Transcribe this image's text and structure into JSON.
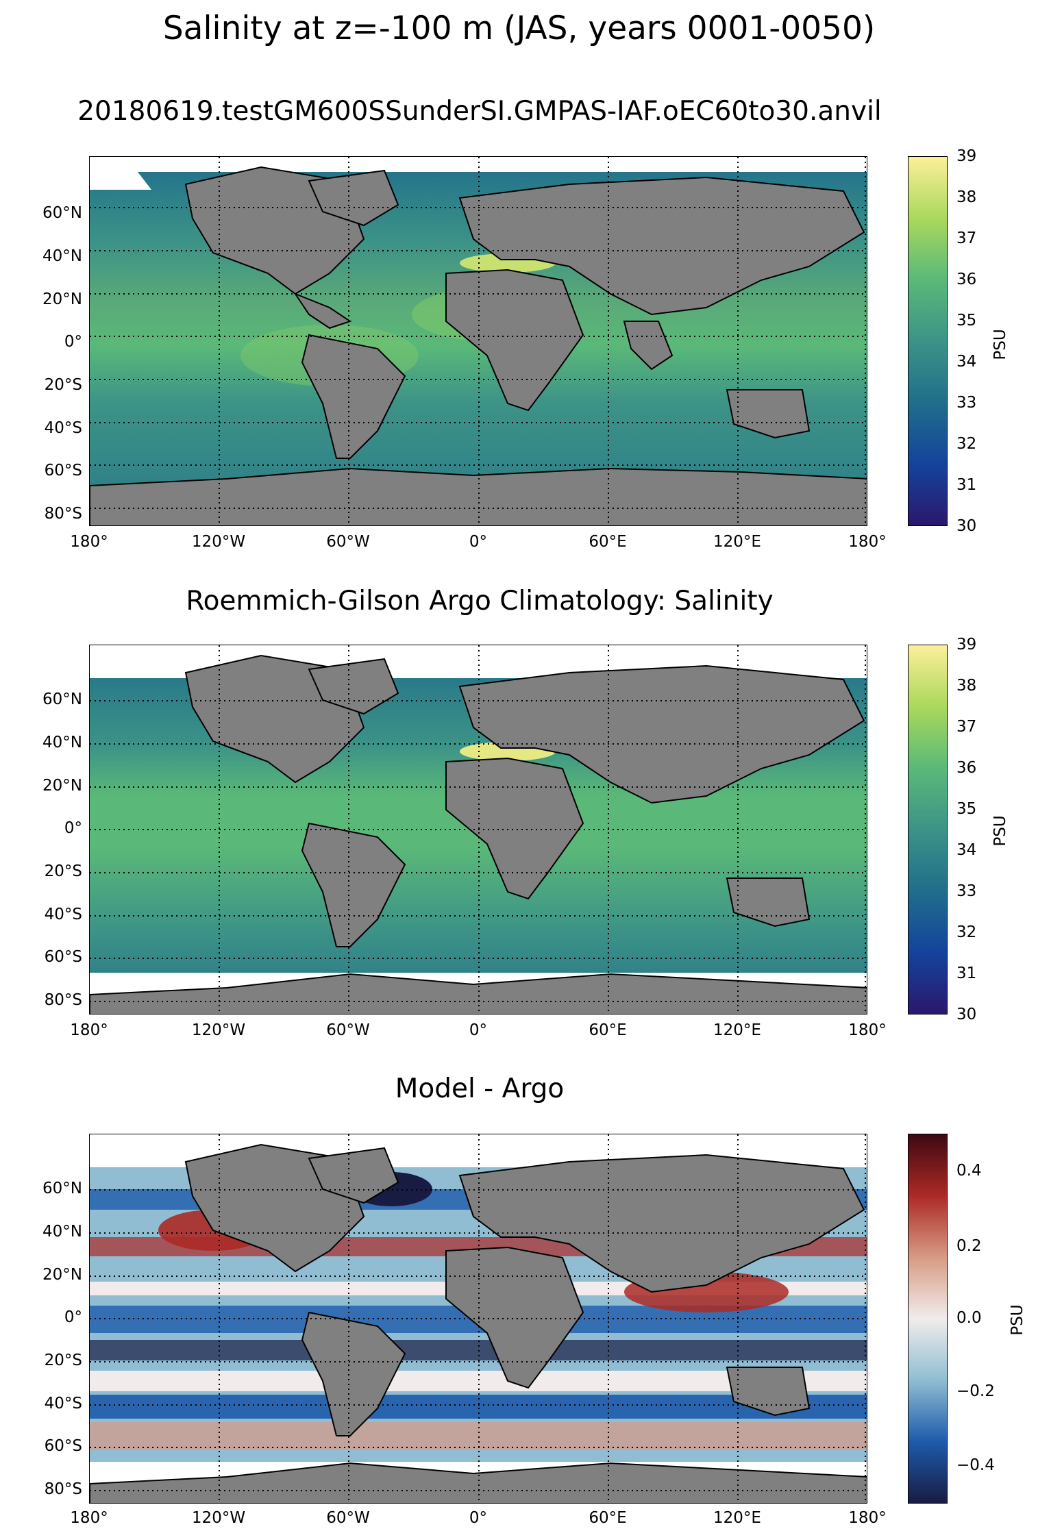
{
  "figure": {
    "title": "Salinity at z=-100 m (JAS, years 0001-0050)"
  },
  "map_axes": {
    "lat_ticks": [
      "60°N",
      "40°N",
      "20°N",
      "0°",
      "20°S",
      "40°S",
      "60°S",
      "80°S"
    ],
    "lon_ticks": [
      "180°",
      "120°W",
      "60°W",
      "0°",
      "60°E",
      "120°E",
      "180°"
    ]
  },
  "panels": [
    {
      "title": "20180619.testGM600SSunderSI.GMPAS-IAF.oEC60to30.anvil",
      "colorbar": {
        "label": "PSU",
        "ticks": [
          "39",
          "38",
          "37",
          "36",
          "35",
          "34",
          "33",
          "32",
          "31",
          "30"
        ],
        "colormap": "haline"
      }
    },
    {
      "title": "Roemmich-Gilson Argo Climatology: Salinity",
      "colorbar": {
        "label": "PSU",
        "ticks": [
          "39",
          "38",
          "37",
          "36",
          "35",
          "34",
          "33",
          "32",
          "31",
          "30"
        ],
        "colormap": "haline"
      }
    },
    {
      "title": "Model - Argo",
      "colorbar": {
        "label": "PSU",
        "ticks": [
          "0.4",
          "0.2",
          "0.0",
          "−0.2",
          "−0.4"
        ],
        "colormap": "balance"
      }
    }
  ],
  "colors": {
    "land": "#808080",
    "haline": [
      "#2a186c",
      "#14439c",
      "#206e8b",
      "#3c9387",
      "#5ab978",
      "#aad85c",
      "#fdef9a"
    ],
    "balance": [
      "#181c43",
      "#1e5bab",
      "#90bdd2",
      "#f1eceb",
      "#d79a84",
      "#ac2a26",
      "#3c0912"
    ]
  }
}
